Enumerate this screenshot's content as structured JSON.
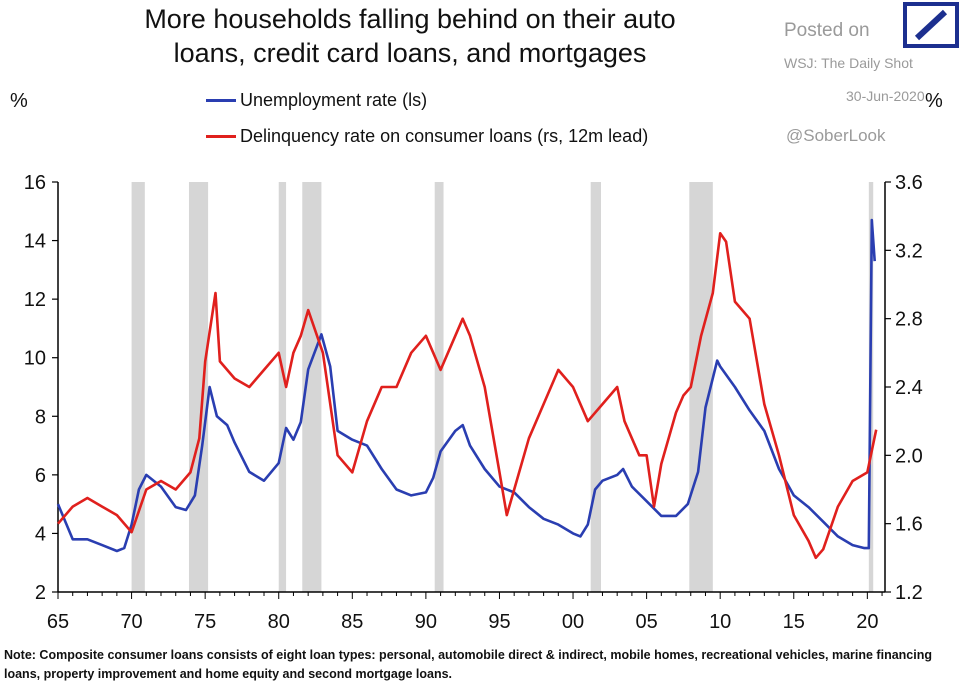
{
  "header": {
    "title_line1": "More households falling behind on their auto",
    "title_line2": "loans, credit card loans, and mortgages",
    "posted_label": "Posted on",
    "posted_source": "WSJ: The Daily Shot",
    "posted_date": "30-Jun-2020",
    "handle": "@SoberLook",
    "logo_icon": "deutsche-bank-slash-icon",
    "logo_color": "#1c2f8f"
  },
  "note": "Note: Composite consumer loans consists of eight loan types: personal, automobile direct & indirect, mobile homes, recreational vehicles, marine financing loans, property improvement and home equity and second mortgage loans.",
  "chart_data": {
    "type": "line",
    "title": "More households falling behind on their auto loans, credit card loans, and mortgages",
    "left_unit": "%",
    "right_unit": "%",
    "x_ticks": [
      "65",
      "70",
      "75",
      "80",
      "85",
      "90",
      "95",
      "00",
      "05",
      "10",
      "15",
      "20"
    ],
    "x_tick_years": [
      1965,
      1970,
      1975,
      1980,
      1985,
      1990,
      1995,
      2000,
      2005,
      2010,
      2015,
      2020
    ],
    "xlim": [
      1965,
      2021.2
    ],
    "ylim_left": [
      2,
      16
    ],
    "yticks_left": [
      "2",
      "4",
      "6",
      "8",
      "10",
      "12",
      "14",
      "16"
    ],
    "ylim_right": [
      1.2,
      3.6
    ],
    "yticks_right": [
      "1.2",
      "1.6",
      "2.0",
      "2.4",
      "2.8",
      "3.2",
      "3.6"
    ],
    "recessions": [
      [
        1970.0,
        1970.9
      ],
      [
        1973.9,
        1975.2
      ],
      [
        1980.0,
        1980.5
      ],
      [
        1981.6,
        1982.9
      ],
      [
        1990.6,
        1991.2
      ],
      [
        2001.2,
        2001.9
      ],
      [
        2007.9,
        2009.5
      ],
      [
        2020.1,
        2020.4
      ]
    ],
    "series": [
      {
        "name": "Unemployment rate (ls)",
        "axis": "left",
        "color": "#2a3eb1",
        "x": [
          1965,
          1966,
          1967,
          1968,
          1969,
          1969.5,
          1970,
          1970.5,
          1971,
          1972,
          1973,
          1973.7,
          1974.3,
          1974.8,
          1975.3,
          1975.8,
          1976.5,
          1977,
          1978,
          1979,
          1980,
          1980.5,
          1981,
          1981.5,
          1982,
          1982.9,
          1983.5,
          1984,
          1985,
          1986,
          1987,
          1988,
          1989,
          1990,
          1990.5,
          1991,
          1992,
          1992.5,
          1993,
          1994,
          1995,
          1996,
          1997,
          1998,
          1999,
          2000,
          2000.5,
          2001,
          2001.5,
          2002,
          2003,
          2003.4,
          2004,
          2005,
          2006,
          2007,
          2007.8,
          2008.5,
          2009,
          2009.8,
          2010,
          2011,
          2012,
          2013,
          2014,
          2015,
          2016,
          2017,
          2018,
          2019,
          2019.8,
          2020.1,
          2020.3,
          2020.5
        ],
        "values": [
          5.0,
          3.8,
          3.8,
          3.6,
          3.4,
          3.5,
          4.3,
          5.5,
          6.0,
          5.6,
          4.9,
          4.8,
          5.3,
          7.0,
          9.0,
          8.0,
          7.7,
          7.1,
          6.1,
          5.8,
          6.4,
          7.6,
          7.2,
          7.8,
          9.6,
          10.8,
          9.7,
          7.5,
          7.2,
          7.0,
          6.2,
          5.5,
          5.3,
          5.4,
          5.9,
          6.8,
          7.5,
          7.7,
          7.0,
          6.2,
          5.6,
          5.4,
          4.9,
          4.5,
          4.3,
          4.0,
          3.9,
          4.3,
          5.5,
          5.8,
          6.0,
          6.2,
          5.6,
          5.1,
          4.6,
          4.6,
          5.0,
          6.1,
          8.3,
          9.9,
          9.7,
          9.0,
          8.2,
          7.5,
          6.2,
          5.3,
          4.9,
          4.4,
          3.9,
          3.6,
          3.5,
          3.5,
          14.7,
          13.3
        ]
      },
      {
        "name": "Delinquency rate on consumer loans (rs, 12m lead)",
        "axis": "right",
        "color": "#e0201d",
        "x": [
          1965,
          1966,
          1967,
          1968,
          1969,
          1970,
          1971,
          1972,
          1973,
          1974,
          1974.6,
          1975,
          1975.7,
          1976,
          1977,
          1978,
          1979,
          1980,
          1980.5,
          1981,
          1981.5,
          1982,
          1983,
          1984,
          1985,
          1986,
          1987,
          1988,
          1989,
          1990,
          1991,
          1992,
          1992.5,
          1993,
          1994,
          1995,
          1995.5,
          1996,
          1997,
          1998,
          1999,
          2000,
          2001,
          2002,
          2003,
          2003.5,
          2004,
          2004.5,
          2005,
          2005.5,
          2006,
          2007,
          2007.5,
          2008,
          2008.7,
          2009.5,
          2010,
          2010.4,
          2011,
          2012,
          2013,
          2014,
          2015,
          2016,
          2016.5,
          2017,
          2018,
          2019,
          2020,
          2020.6
        ],
        "values": [
          1.6,
          1.7,
          1.75,
          1.7,
          1.65,
          1.55,
          1.8,
          1.85,
          1.8,
          1.9,
          2.1,
          2.55,
          2.95,
          2.55,
          2.45,
          2.4,
          2.5,
          2.6,
          2.4,
          2.6,
          2.7,
          2.85,
          2.6,
          2.0,
          1.9,
          2.2,
          2.4,
          2.4,
          2.6,
          2.7,
          2.5,
          2.7,
          2.8,
          2.7,
          2.4,
          1.9,
          1.65,
          1.8,
          2.1,
          2.3,
          2.5,
          2.4,
          2.2,
          2.3,
          2.4,
          2.2,
          2.1,
          2.0,
          2.0,
          1.7,
          1.95,
          2.25,
          2.35,
          2.4,
          2.7,
          2.95,
          3.3,
          3.25,
          2.9,
          2.8,
          2.3,
          2.0,
          1.65,
          1.5,
          1.4,
          1.45,
          1.7,
          1.85,
          1.9,
          2.15
        ]
      }
    ]
  }
}
